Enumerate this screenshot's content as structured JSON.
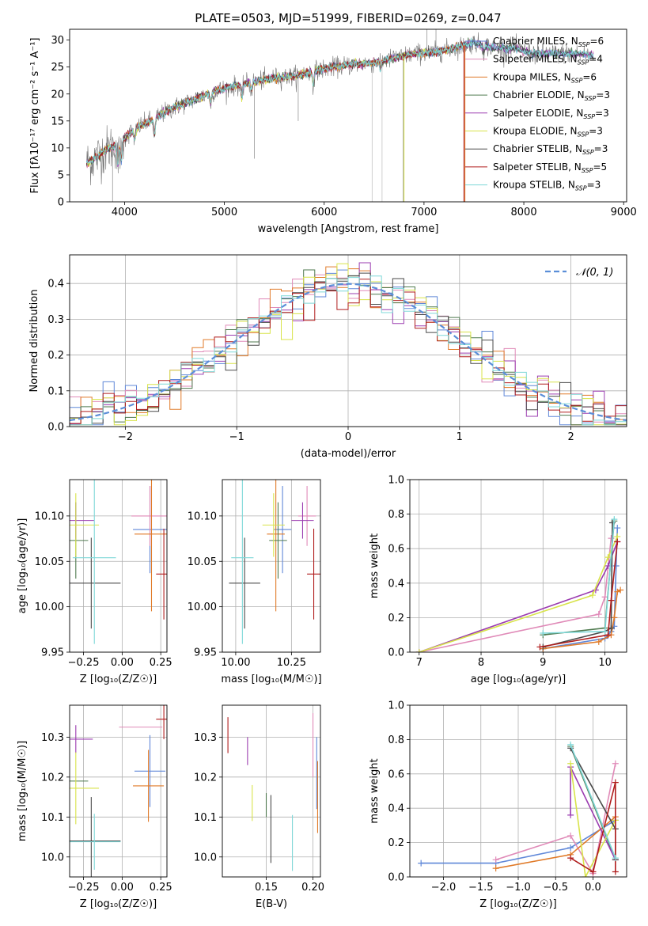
{
  "colors": {
    "Chabrier MILES": "#5f87d8",
    "Salpeter MILES": "#e08ab8",
    "Kroupa MILES": "#e07a28",
    "Chabrier ELODIE": "#4f7a4f",
    "Salpeter ELODIE": "#9b3cb0",
    "Kroupa ELODIE": "#d8e34a",
    "Chabrier STELIB": "#4a4a4a",
    "Salpeter STELIB": "#b01c1c",
    "Kroupa STELIB": "#7fd8d8",
    "normal": "#5b8ed8",
    "grid": "#b0b0b0"
  },
  "chart_data": [
    {
      "type": "line",
      "title": "PLATE=0503, MJD=51999, FIBERID=0269, z=0.047",
      "xlabel": "wavelength [Angstrom, rest frame]",
      "ylabel": "Flux [fλ10⁻¹⁷ erg cm⁻² s⁻¹ A⁻¹]",
      "xlim": [
        3450,
        9030
      ],
      "ylim": [
        0,
        32
      ],
      "xticks": [
        "4000",
        "5000",
        "6000",
        "7000",
        "8000",
        "9000"
      ],
      "yticks": [
        "0",
        "5",
        "10",
        "15",
        "20",
        "25",
        "30"
      ],
      "grid": false,
      "legend_position": "top-right",
      "legend": [
        {
          "name": "Chabrier MILES",
          "n_ssp": "6"
        },
        {
          "name": "Salpeter MILES",
          "n_ssp": "4"
        },
        {
          "name": "Kroupa MILES",
          "n_ssp": "6"
        },
        {
          "name": "Chabrier ELODIE",
          "n_ssp": "3"
        },
        {
          "name": "Salpeter ELODIE",
          "n_ssp": "3"
        },
        {
          "name": "Kroupa ELODIE",
          "n_ssp": "3"
        },
        {
          "name": "Chabrier STELIB",
          "n_ssp": "3"
        },
        {
          "name": "Salpeter STELIB",
          "n_ssp": "5"
        },
        {
          "name": "Kroupa STELIB",
          "n_ssp": "3"
        }
      ],
      "continuum": [
        [
          3600,
          7.0
        ],
        [
          3700,
          8.0
        ],
        [
          3800,
          9.5
        ],
        [
          3950,
          11
        ],
        [
          4100,
          13.5
        ],
        [
          4300,
          15.5
        ],
        [
          4500,
          17.5
        ],
        [
          4700,
          19
        ],
        [
          4900,
          20.5
        ],
        [
          5100,
          21.5
        ],
        [
          5300,
          22.3
        ],
        [
          5500,
          23
        ],
        [
          5700,
          23.3
        ],
        [
          5900,
          24.3
        ],
        [
          6100,
          25
        ],
        [
          6300,
          25.5
        ],
        [
          6500,
          25.8
        ],
        [
          6700,
          26.6
        ],
        [
          6900,
          27.5
        ],
        [
          7100,
          27.7
        ],
        [
          7300,
          28.5
        ],
        [
          7500,
          29.5
        ],
        [
          7700,
          28.5
        ],
        [
          7900,
          28.5
        ],
        [
          8100,
          27.5
        ],
        [
          8300,
          27.5
        ],
        [
          8500,
          27.5
        ],
        [
          8650,
          27.2
        ]
      ]
    },
    {
      "type": "line",
      "title": "",
      "xlabel": "(data-model)/error",
      "ylabel": "Normed distribution",
      "xlim": [
        -2.5,
        2.5
      ],
      "ylim": [
        0,
        0.48
      ],
      "xticks": [
        "−2",
        "−1",
        "0",
        "1",
        "2"
      ],
      "yticks": [
        "0.0",
        "0.1",
        "0.2",
        "0.3",
        "0.4"
      ],
      "grid": true,
      "legend_position": "top-right",
      "legend": [
        {
          "name": "𝒩(0, 1)"
        }
      ],
      "bin_width": 0.1,
      "bin_start": -2.5
    },
    {
      "type": "scatter",
      "title": "",
      "xlabel": "Z [log₁₀(Z/Z☉)]",
      "ylabel": "age  [log₁₀(age/yr)]",
      "xlim": [
        -0.34,
        0.29
      ],
      "ylim": [
        9.95,
        10.14
      ],
      "xticks": [
        "−0.25",
        "0.00",
        "0.25"
      ],
      "yticks": [
        "9.95",
        "10.00",
        "10.05",
        "10.10"
      ],
      "grid": true,
      "points": [
        {
          "series": "Chabrier MILES",
          "x": 0.18,
          "y": 10.085,
          "xerr": 0.11,
          "yerr": 0.048
        },
        {
          "series": "Salpeter MILES",
          "x": 0.18,
          "y": 10.1,
          "xerr": 0.12,
          "yerr": 0.033
        },
        {
          "series": "Kroupa MILES",
          "x": 0.19,
          "y": 10.08,
          "xerr": 0.11,
          "yerr": 0.085
        },
        {
          "series": "Chabrier ELODIE",
          "x": -0.3,
          "y": 10.073,
          "xerr": 0.08,
          "yerr": 0.042
        },
        {
          "series": "Salpeter ELODIE",
          "x": -0.3,
          "y": 10.095,
          "xerr": 0.12,
          "yerr": 0.02
        },
        {
          "series": "Kroupa ELODIE",
          "x": -0.3,
          "y": 10.09,
          "xerr": 0.15,
          "yerr": 0.035
        },
        {
          "series": "Chabrier STELIB",
          "x": -0.2,
          "y": 10.026,
          "xerr": 0.19,
          "yerr": 0.05
        },
        {
          "series": "Salpeter STELIB",
          "x": 0.27,
          "y": 10.036,
          "xerr": 0.05,
          "yerr": 0.05
        },
        {
          "series": "Kroupa STELIB",
          "x": -0.18,
          "y": 10.054,
          "xerr": 0.14,
          "yerr": 0.095
        }
      ]
    },
    {
      "type": "scatter",
      "title": "",
      "xlabel": "mass [log₁₀(M/M☉)]",
      "ylabel": "",
      "xlim": [
        9.94,
        10.38
      ],
      "ylim": [
        9.95,
        10.14
      ],
      "xticks": [
        "10.00",
        "10.25"
      ],
      "yticks": [
        "9.95",
        "10.00",
        "10.05",
        "10.10"
      ],
      "grid": true,
      "points": [
        {
          "series": "Chabrier MILES",
          "x": 10.21,
          "y": 10.085,
          "xerr": 0.04,
          "yerr": 0.048
        },
        {
          "series": "Salpeter MILES",
          "x": 10.32,
          "y": 10.1,
          "xerr": 0.04,
          "yerr": 0.033
        },
        {
          "series": "Kroupa MILES",
          "x": 10.18,
          "y": 10.08,
          "xerr": 0.04,
          "yerr": 0.085
        },
        {
          "series": "Chabrier ELODIE",
          "x": 10.19,
          "y": 10.073,
          "xerr": 0.04,
          "yerr": 0.042
        },
        {
          "series": "Salpeter ELODIE",
          "x": 10.3,
          "y": 10.095,
          "xerr": 0.05,
          "yerr": 0.02
        },
        {
          "series": "Kroupa ELODIE",
          "x": 10.17,
          "y": 10.09,
          "xerr": 0.05,
          "yerr": 0.035
        },
        {
          "series": "Chabrier STELIB",
          "x": 10.04,
          "y": 10.026,
          "xerr": 0.07,
          "yerr": 0.05
        },
        {
          "series": "Salpeter STELIB",
          "x": 10.35,
          "y": 10.036,
          "xerr": 0.03,
          "yerr": 0.05
        },
        {
          "series": "Kroupa STELIB",
          "x": 10.03,
          "y": 10.054,
          "xerr": 0.05,
          "yerr": 0.095
        }
      ]
    },
    {
      "type": "line",
      "title": "",
      "xlabel": "age  [log₁₀(age/yr)]",
      "ylabel": "mass weight",
      "xlim": [
        6.85,
        10.35
      ],
      "ylim": [
        0,
        1.0
      ],
      "xticks": [
        "7",
        "8",
        "9",
        "10"
      ],
      "yticks": [
        "0.0",
        "0.2",
        "0.4",
        "0.6",
        "0.8",
        "1.0"
      ],
      "grid": true,
      "series": [
        {
          "name": "Chabrier MILES",
          "x": [
            9.0,
            10.0,
            10.1,
            10.15,
            10.18,
            10.2
          ],
          "y": [
            0.02,
            0.08,
            0.12,
            0.15,
            0.5,
            0.72
          ]
        },
        {
          "name": "Salpeter MILES",
          "x": [
            7.0,
            9.9,
            10.0,
            10.1
          ],
          "y": [
            0.0,
            0.22,
            0.32,
            0.66
          ]
        },
        {
          "name": "Kroupa MILES",
          "x": [
            9.0,
            9.9,
            10.1,
            10.15,
            10.2,
            10.25
          ],
          "y": [
            0.02,
            0.06,
            0.1,
            0.2,
            0.35,
            0.36
          ]
        },
        {
          "name": "Chabrier ELODIE",
          "x": [
            9.0,
            10.0,
            10.15
          ],
          "y": [
            0.1,
            0.14,
            0.76
          ]
        },
        {
          "name": "Salpeter ELODIE",
          "x": [
            7.0,
            9.85,
            10.05,
            10.2
          ],
          "y": [
            0.0,
            0.36,
            0.5,
            0.64
          ]
        },
        {
          "name": "Kroupa ELODIE",
          "x": [
            7.0,
            9.8,
            10.05,
            10.2
          ],
          "y": [
            0.0,
            0.33,
            0.55,
            0.67
          ]
        },
        {
          "name": "Chabrier STELIB",
          "x": [
            9.0,
            10.0,
            10.1,
            10.12
          ],
          "y": [
            0.03,
            0.12,
            0.14,
            0.75
          ]
        },
        {
          "name": "Salpeter STELIB",
          "x": [
            8.95,
            10.05,
            10.1,
            10.2
          ],
          "y": [
            0.03,
            0.1,
            0.3,
            0.64
          ]
        },
        {
          "name": "Kroupa STELIB",
          "x": [
            9.0,
            10.0,
            10.15
          ],
          "y": [
            0.11,
            0.12,
            0.77
          ]
        }
      ]
    },
    {
      "type": "scatter",
      "title": "",
      "xlabel": "Z [log₁₀(Z/Z☉)]",
      "ylabel": "mass [log₁₀(M/M☉)]",
      "xlim": [
        -0.34,
        0.29
      ],
      "ylim": [
        9.95,
        10.38
      ],
      "xticks": [
        "−0.25",
        "0.00",
        "0.25"
      ],
      "yticks": [
        "10.0",
        "10.1",
        "10.2",
        "10.3"
      ],
      "grid": true,
      "points": [
        {
          "series": "Chabrier MILES",
          "x": 0.18,
          "y": 10.215,
          "xerr": 0.1,
          "yerr": 0.09
        },
        {
          "series": "Salpeter MILES",
          "x": 0.12,
          "y": 10.325,
          "xerr": 0.14,
          "yerr": 0.0
        },
        {
          "series": "Kroupa MILES",
          "x": 0.17,
          "y": 10.178,
          "xerr": 0.1,
          "yerr": 0.09
        },
        {
          "series": "Chabrier ELODIE",
          "x": -0.3,
          "y": 10.19,
          "xerr": 0.08,
          "yerr": 0.0
        },
        {
          "series": "Salpeter ELODIE",
          "x": -0.3,
          "y": 10.295,
          "xerr": 0.11,
          "yerr": 0.035
        },
        {
          "series": "Kroupa ELODIE",
          "x": -0.3,
          "y": 10.172,
          "xerr": 0.15,
          "yerr": 0.09
        },
        {
          "series": "Chabrier STELIB",
          "x": -0.2,
          "y": 10.04,
          "xerr": 0.19,
          "yerr": 0.11
        },
        {
          "series": "Salpeter STELIB",
          "x": 0.27,
          "y": 10.345,
          "xerr": 0.05,
          "yerr": 0.05
        },
        {
          "series": "Kroupa STELIB",
          "x": -0.18,
          "y": 10.038,
          "xerr": 0.17,
          "yerr": 0.07
        }
      ]
    },
    {
      "type": "scatter",
      "title": "",
      "xlabel": "E(B-V)",
      "ylabel": "",
      "xlim": [
        0.103,
        0.208
      ],
      "ylim": [
        9.95,
        10.38
      ],
      "xticks": [
        "0.15",
        "0.20"
      ],
      "yticks": [
        "10.0",
        "10.1",
        "10.2",
        "10.3"
      ],
      "grid": true,
      "points": [
        {
          "series": "Chabrier MILES",
          "x": 0.204,
          "y": 10.21,
          "xerr": 0.0,
          "yerr": 0.09
        },
        {
          "series": "Salpeter MILES",
          "x": 0.2,
          "y": 10.28,
          "xerr": 0.0,
          "yerr": 0.08
        },
        {
          "series": "Kroupa MILES",
          "x": 0.205,
          "y": 10.15,
          "xerr": 0.0,
          "yerr": 0.09
        },
        {
          "series": "Chabrier ELODIE",
          "x": 0.15,
          "y": 10.13,
          "xerr": 0.0,
          "yerr": 0.03
        },
        {
          "series": "Salpeter ELODIE",
          "x": 0.13,
          "y": 10.265,
          "xerr": 0.0,
          "yerr": 0.035
        },
        {
          "series": "Kroupa ELODIE",
          "x": 0.135,
          "y": 10.135,
          "xerr": 0.0,
          "yerr": 0.045
        },
        {
          "series": "Chabrier STELIB",
          "x": 0.155,
          "y": 10.07,
          "xerr": 0.0,
          "yerr": 0.085
        },
        {
          "series": "Salpeter STELIB",
          "x": 0.109,
          "y": 10.305,
          "xerr": 0.0,
          "yerr": 0.045
        },
        {
          "series": "Kroupa STELIB",
          "x": 0.178,
          "y": 10.035,
          "xerr": 0.0,
          "yerr": 0.07
        }
      ]
    },
    {
      "type": "line",
      "title": "",
      "xlabel": "Z [log₁₀(Z/Z☉)]",
      "ylabel": "mass weight",
      "xlim": [
        -2.45,
        0.45
      ],
      "ylim": [
        0,
        1.0
      ],
      "xticks": [
        "−2.0",
        "−1.5",
        "−1.0",
        "−0.5",
        "0.0"
      ],
      "yticks": [
        "0.0",
        "0.2",
        "0.4",
        "0.6",
        "0.8",
        "1.0"
      ],
      "grid": true,
      "series": [
        {
          "name": "Chabrier MILES",
          "x": [
            -2.3,
            -1.3,
            -0.3,
            0.3
          ],
          "y": [
            0.08,
            0.08,
            0.17,
            0.33
          ]
        },
        {
          "name": "Salpeter MILES",
          "x": [
            -1.3,
            -0.3,
            0.0,
            0.3
          ],
          "y": [
            0.1,
            0.24,
            0.02,
            0.66
          ]
        },
        {
          "name": "Kroupa MILES",
          "x": [
            -1.3,
            -0.3,
            0.3
          ],
          "y": [
            0.05,
            0.13,
            0.35
          ]
        },
        {
          "name": "Chabrier ELODIE",
          "x": [
            -0.3,
            0.3
          ],
          "y": [
            0.76,
            0.1
          ]
        },
        {
          "name": "Salpeter ELODIE",
          "x": [
            -0.3,
            -0.3,
            0.3
          ],
          "y": [
            0.36,
            0.64,
            0.1
          ]
        },
        {
          "name": "Kroupa ELODIE",
          "x": [
            -0.3,
            -0.1,
            0.3
          ],
          "y": [
            0.66,
            0.0,
            0.33
          ]
        },
        {
          "name": "Chabrier STELIB",
          "x": [
            -0.3,
            0.3,
            0.3
          ],
          "y": [
            0.75,
            0.28,
            0.1
          ]
        },
        {
          "name": "Salpeter STELIB",
          "x": [
            -0.3,
            0.0,
            0.3,
            0.3
          ],
          "y": [
            0.11,
            0.03,
            0.55,
            0.03
          ]
        },
        {
          "name": "Kroupa STELIB",
          "x": [
            -0.3,
            0.3
          ],
          "y": [
            0.77,
            0.11
          ]
        }
      ]
    }
  ]
}
